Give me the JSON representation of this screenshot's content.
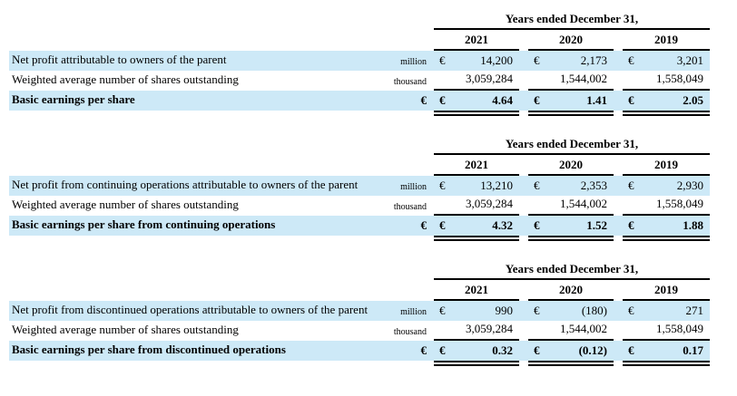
{
  "styles": {
    "highlight_row_color": "#cde9f7",
    "rule_color": "#000000"
  },
  "tables": [
    {
      "name": "basic-eps",
      "period_header": "Years ended December 31,",
      "years": [
        "2021",
        "2020",
        "2019"
      ],
      "rows": [
        {
          "label": "Net profit attributable to owners of the parent",
          "unit": "million",
          "currency": "€",
          "values": [
            "14,200",
            "2,173",
            "3,201"
          ]
        },
        {
          "label": "Weighted average number of shares outstanding",
          "unit": "thousand",
          "currency": "",
          "values": [
            "3,059,284",
            "1,544,002",
            "1,558,049"
          ]
        },
        {
          "label": "Basic earnings per share",
          "unit": "€",
          "currency": "€",
          "values": [
            "4.64",
            "1.41",
            "2.05"
          ]
        }
      ]
    },
    {
      "name": "basic-eps-continuing-operations",
      "period_header": "Years ended December 31,",
      "years": [
        "2021",
        "2020",
        "2019"
      ],
      "rows": [
        {
          "label": "Net profit from continuing operations attributable to owners of the parent",
          "unit": "million",
          "currency": "€",
          "values": [
            "13,210",
            "2,353",
            "2,930"
          ]
        },
        {
          "label": "Weighted average number of shares outstanding",
          "unit": "thousand",
          "currency": "",
          "values": [
            "3,059,284",
            "1,544,002",
            "1,558,049"
          ]
        },
        {
          "label": "Basic earnings per share from continuing operations",
          "unit": "€",
          "currency": "€",
          "values": [
            "4.32",
            "1.52",
            "1.88"
          ]
        }
      ]
    },
    {
      "name": "basic-eps-discontinued-operations",
      "period_header": "Years ended December 31,",
      "years": [
        "2021",
        "2020",
        "2019"
      ],
      "rows": [
        {
          "label": "Net profit from discontinued operations attributable to owners of the parent",
          "unit": "million",
          "currency": "€",
          "values": [
            "990",
            "(180)",
            "271"
          ]
        },
        {
          "label": "Weighted average number of shares outstanding",
          "unit": "thousand",
          "currency": "",
          "values": [
            "3,059,284",
            "1,544,002",
            "1,558,049"
          ]
        },
        {
          "label": "Basic earnings per share from discontinued operations",
          "unit": "€",
          "currency": "€",
          "values": [
            "0.32",
            "(0.12)",
            "0.17"
          ]
        }
      ]
    }
  ]
}
